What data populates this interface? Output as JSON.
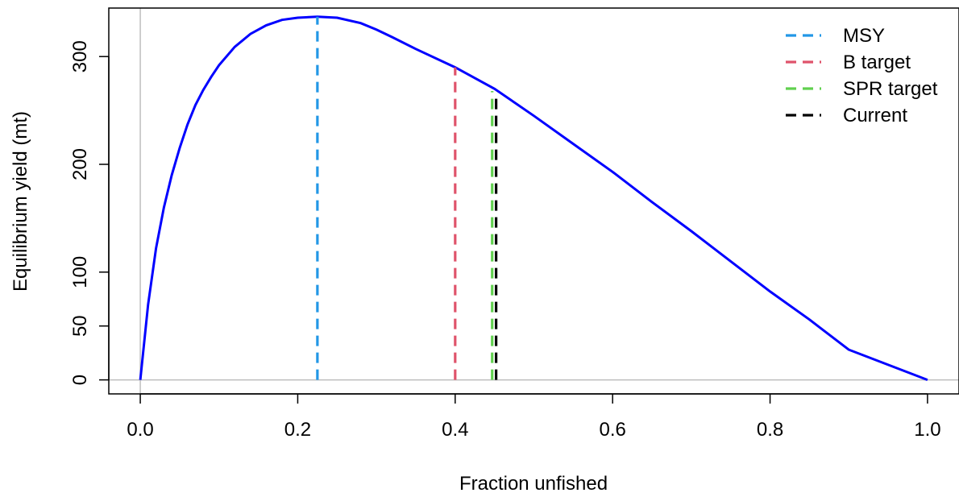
{
  "chart_data": {
    "type": "line",
    "title": "",
    "xlabel": "Fraction unfished",
    "ylabel": "Equilibrium yield (mt)",
    "xlim": [
      -0.04,
      1.04
    ],
    "ylim": [
      -13,
      345
    ],
    "x_ticks": [
      0.0,
      0.2,
      0.4,
      0.6,
      0.8,
      1.0
    ],
    "x_tick_labels": [
      "0.0",
      "0.2",
      "0.4",
      "0.6",
      "0.8",
      "1.0"
    ],
    "y_ticks": [
      0,
      50,
      100,
      200,
      300
    ],
    "y_tick_labels": [
      "0",
      "50",
      "100",
      "200",
      "300"
    ],
    "grid": false,
    "reference_lines": {
      "x": 0,
      "y": 0,
      "color": "#bebebe"
    },
    "curve": {
      "color": "#0000ff",
      "x": [
        0.0,
        0.01,
        0.02,
        0.03,
        0.04,
        0.05,
        0.06,
        0.07,
        0.08,
        0.09,
        0.1,
        0.12,
        0.14,
        0.16,
        0.18,
        0.2,
        0.225,
        0.25,
        0.28,
        0.3,
        0.32,
        0.35,
        0.4,
        0.45,
        0.5,
        0.55,
        0.6,
        0.65,
        0.7,
        0.75,
        0.8,
        0.85,
        0.9,
        0.95,
        1.0
      ],
      "y": [
        0,
        70,
        122,
        160,
        190,
        215,
        237,
        255,
        269,
        281,
        292,
        309,
        321,
        329,
        334,
        336,
        337,
        336,
        331,
        325,
        318,
        307,
        290,
        270,
        245,
        219,
        193,
        165,
        138,
        110,
        82,
        56,
        28,
        14,
        0
      ]
    },
    "series": [
      {
        "name": "MSY",
        "x": 0.225,
        "y_top": 337,
        "color": "#2297e6"
      },
      {
        "name": "B target",
        "x": 0.4,
        "y_top": 290,
        "color": "#df536b"
      },
      {
        "name": "SPR target",
        "x": 0.447,
        "y_top": 268,
        "color": "#61d04f"
      },
      {
        "name": "Current",
        "x": 0.452,
        "y_top": 266,
        "color": "#000000"
      }
    ],
    "legend_position": "top-right"
  }
}
